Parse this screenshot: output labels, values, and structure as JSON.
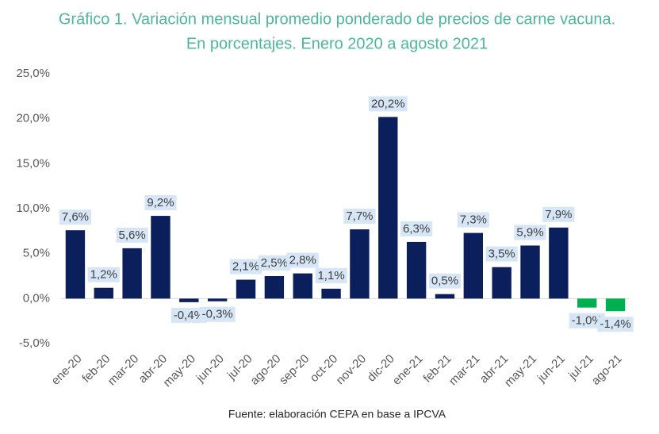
{
  "chart_data": {
    "type": "bar",
    "title": "Gráfico 1. Variación mensual promedio ponderado de precios de carne vacuna.",
    "subtitle": "En porcentajes. Enero 2020 a agosto 2021",
    "source": "Fuente: elaboración CEPA en base a IPCVA",
    "categories": [
      "ene-20",
      "feb-20",
      "mar-20",
      "abr-20",
      "may-20",
      "jun-20",
      "jul-20",
      "ago-20",
      "sep-20",
      "oct-20",
      "nov-20",
      "dic-20",
      "ene-21",
      "feb-21",
      "mar-21",
      "abr-21",
      "may-21",
      "jun-21",
      "jul-21",
      "ago-21"
    ],
    "values": [
      7.6,
      1.2,
      5.6,
      9.2,
      -0.4,
      -0.3,
      2.1,
      2.5,
      2.8,
      1.1,
      7.7,
      20.2,
      6.3,
      0.5,
      7.3,
      3.5,
      5.9,
      7.9,
      -1.0,
      -1.4
    ],
    "value_labels": [
      "7,6%",
      "1,2%",
      "5,6%",
      "9,2%",
      "-0,4%",
      "-0,3%",
      "2,1%",
      "2,5%",
      "2,8%",
      "1,1%",
      "7,7%",
      "20,2%",
      "6,3%",
      "0,5%",
      "7,3%",
      "3,5%",
      "5,9%",
      "7,9%",
      "-1,0%",
      "-1,4%"
    ],
    "colors": [
      "#0b1f5c",
      "#0b1f5c",
      "#0b1f5c",
      "#0b1f5c",
      "#0b1f5c",
      "#0b1f5c",
      "#0b1f5c",
      "#0b1f5c",
      "#0b1f5c",
      "#0b1f5c",
      "#0b1f5c",
      "#0b1f5c",
      "#0b1f5c",
      "#0b1f5c",
      "#0b1f5c",
      "#0b1f5c",
      "#0b1f5c",
      "#0b1f5c",
      "#00b050",
      "#00b050"
    ],
    "ylim": [
      -5,
      25
    ],
    "yticks": [
      {
        "value": -5,
        "label": "-5,0%"
      },
      {
        "value": 0,
        "label": "0,0%"
      },
      {
        "value": 5,
        "label": "5,0%"
      },
      {
        "value": 10,
        "label": "10,0%"
      },
      {
        "value": 15,
        "label": "15,0%"
      },
      {
        "value": 20,
        "label": "20,0%"
      },
      {
        "value": 25,
        "label": "25,0%"
      }
    ],
    "grid": false
  }
}
